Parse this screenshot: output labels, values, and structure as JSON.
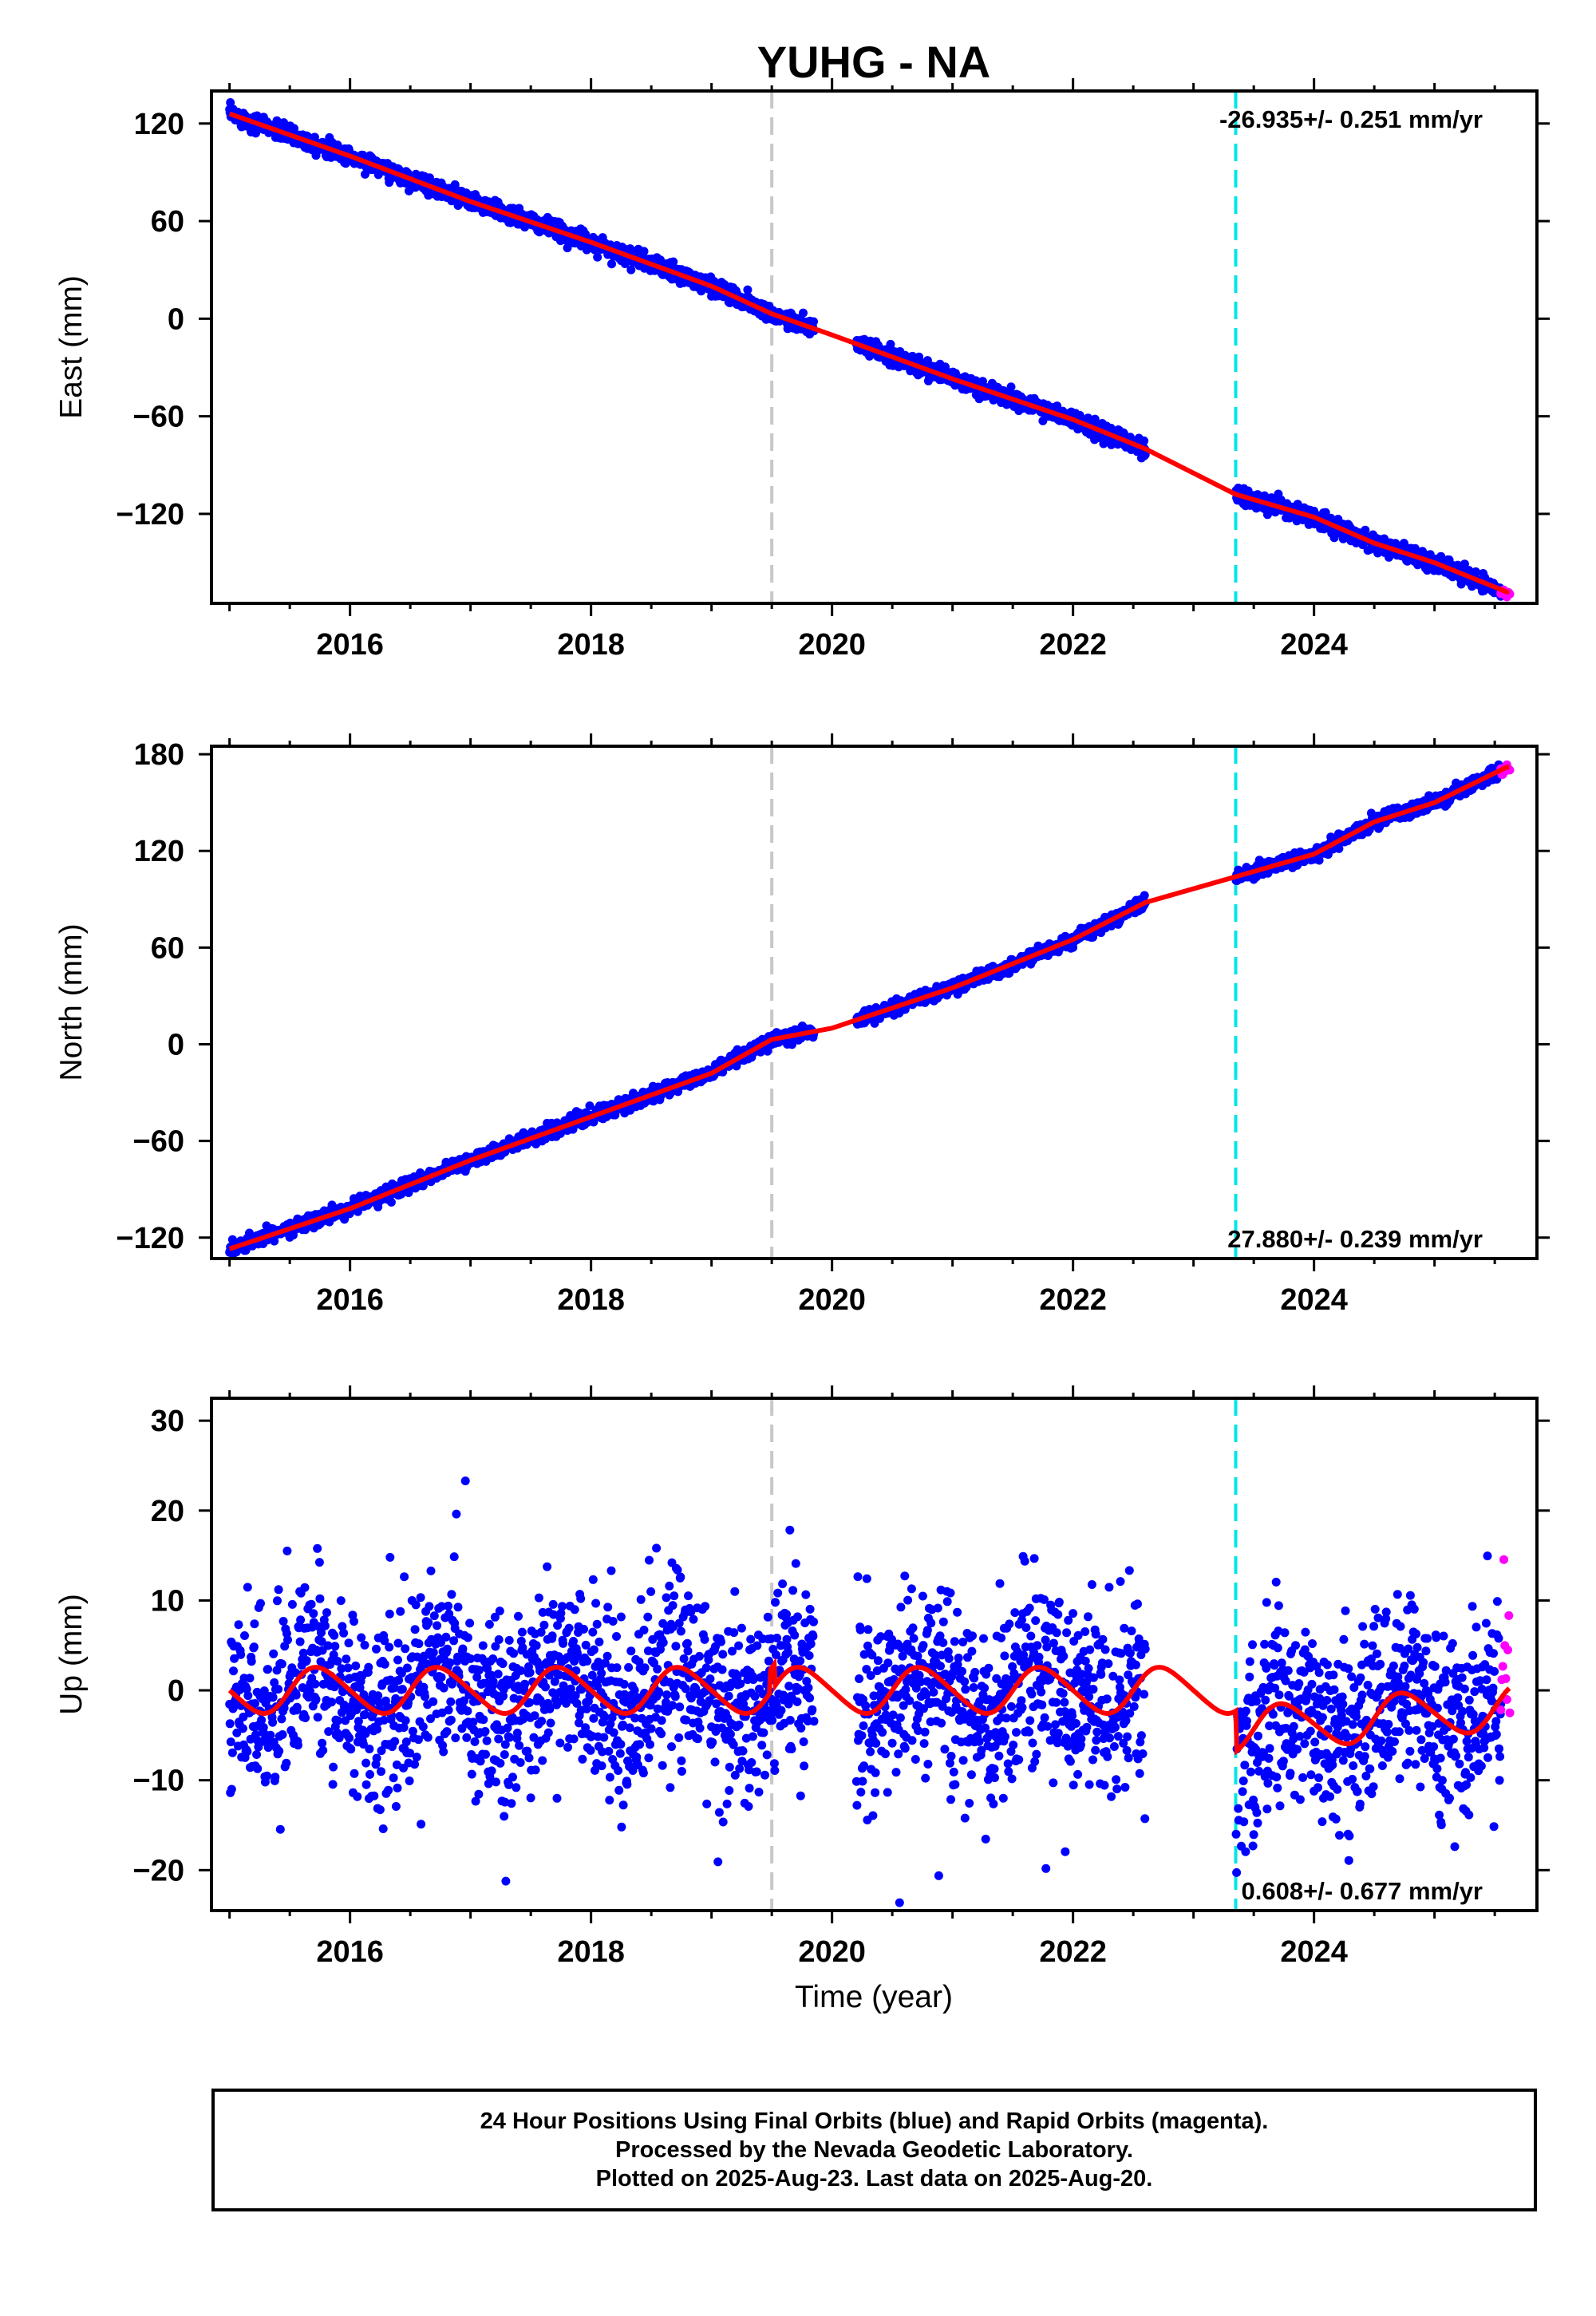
{
  "title": "YUHG - NA",
  "xlabel": "Time (year)",
  "colors": {
    "final_orbits": "#0000ff",
    "rapid_orbits": "#ff00ff",
    "model": "#ff0000",
    "event_gray": "#c8c8c8",
    "event_cyan": "#00e5e5"
  },
  "x_ticks": [
    "2016",
    "2018",
    "2020",
    "2022",
    "2024"
  ],
  "footer": {
    "line1": "24 Hour Positions Using Final Orbits (blue) and Rapid Orbits (magenta).",
    "line2": "Processed by the Nevada Geodetic Laboratory.",
    "line3": "Plotted on 2025-Aug-23. Last data on 2025-Aug-20."
  },
  "chart_data": [
    {
      "type": "scatter",
      "ylabel": "East (mm)",
      "rate_label": "-26.935+/- 0.251 mm/yr",
      "xlim": [
        2014.85,
        2025.85
      ],
      "ylim": [
        -175,
        140
      ],
      "y_ticks": [
        "120",
        "60",
        "0",
        "−60",
        "−120"
      ],
      "y_tick_values": [
        120,
        60,
        0,
        -60,
        -120
      ],
      "event_lines": [
        2019.5,
        2023.35
      ],
      "rate_mm_per_yr": -26.935,
      "model_points": [
        [
          2015.0,
          126
        ],
        [
          2016.0,
          100
        ],
        [
          2017.0,
          72
        ],
        [
          2018.0,
          47
        ],
        [
          2019.0,
          20
        ],
        [
          2019.5,
          3
        ],
        [
          2020.0,
          -10
        ],
        [
          2021.0,
          -37
        ],
        [
          2022.0,
          -62
        ],
        [
          2022.6,
          -80
        ],
        [
          2023.35,
          -108
        ],
        [
          2024.0,
          -122
        ],
        [
          2024.5,
          -138
        ],
        [
          2025.0,
          -150
        ],
        [
          2025.6,
          -168
        ]
      ],
      "series": [
        {
          "name": "Final Orbits",
          "x_range": [
            2015.0,
            2025.55
          ],
          "gaps": [
            [
              2019.85,
              2020.2
            ],
            [
              2022.6,
              2023.35
            ]
          ],
          "noise_mm": 2.5
        },
        {
          "name": "Rapid Orbits",
          "x_range": [
            2025.55,
            2025.63
          ],
          "noise_mm": 2.0
        }
      ]
    },
    {
      "type": "scatter",
      "ylabel": "North (mm)",
      "rate_label": "27.880+/- 0.239 mm/yr",
      "xlim": [
        2014.85,
        2025.85
      ],
      "ylim": [
        -133,
        185
      ],
      "y_ticks": [
        "180",
        "120",
        "60",
        "0",
        "−60",
        "−120"
      ],
      "y_tick_values": [
        180,
        120,
        60,
        0,
        -60,
        -120
      ],
      "event_lines": [
        2019.5,
        2023.35
      ],
      "rate_mm_per_yr": 27.88,
      "model_points": [
        [
          2015.0,
          -127
        ],
        [
          2016.0,
          -102
        ],
        [
          2017.0,
          -72
        ],
        [
          2018.0,
          -45
        ],
        [
          2019.0,
          -18
        ],
        [
          2019.5,
          3
        ],
        [
          2020.0,
          10
        ],
        [
          2021.0,
          35
        ],
        [
          2022.0,
          65
        ],
        [
          2022.6,
          88
        ],
        [
          2023.35,
          104
        ],
        [
          2024.0,
          118
        ],
        [
          2024.5,
          138
        ],
        [
          2025.0,
          150
        ],
        [
          2025.6,
          172
        ]
      ],
      "series": [
        {
          "name": "Final Orbits",
          "x_range": [
            2015.0,
            2025.55
          ],
          "gaps": [
            [
              2019.85,
              2020.2
            ],
            [
              2022.6,
              2023.35
            ]
          ],
          "noise_mm": 2.0
        },
        {
          "name": "Rapid Orbits",
          "x_range": [
            2025.55,
            2025.63
          ],
          "noise_mm": 2.0
        }
      ]
    },
    {
      "type": "scatter",
      "ylabel": "Up (mm)",
      "rate_label": "0.608+/- 0.677 mm/yr",
      "xlim": [
        2014.85,
        2025.85
      ],
      "ylim": [
        -24.5,
        32.5
      ],
      "y_ticks": [
        "30",
        "20",
        "10",
        "0",
        "−10",
        "−20"
      ],
      "y_tick_values": [
        30,
        20,
        10,
        0,
        -10,
        -20
      ],
      "event_lines": [
        2019.5,
        2023.35
      ],
      "rate_mm_per_yr": 0.608,
      "model": {
        "annual_amplitude_mm": 2.5,
        "offset_at_2023_35_mm": -4.5
      },
      "series": [
        {
          "name": "Final Orbits",
          "x_range": [
            2015.0,
            2025.55
          ],
          "gaps": [
            [
              2019.85,
              2020.2
            ],
            [
              2022.6,
              2023.35
            ]
          ],
          "noise_mm": 5.0
        },
        {
          "name": "Rapid Orbits",
          "x_range": [
            2025.55,
            2025.63
          ],
          "noise_mm": 6.0
        }
      ]
    }
  ]
}
